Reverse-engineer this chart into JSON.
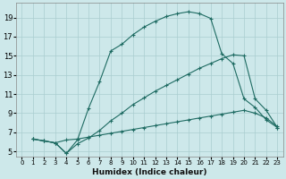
{
  "background_color": "#cde8ea",
  "grid_color": "#aacdd0",
  "line_color": "#1e6b62",
  "xlabel": "Humidex (Indice chaleur)",
  "xlim": [
    -0.5,
    23.5
  ],
  "ylim": [
    4.5,
    20.5
  ],
  "xticks": [
    0,
    1,
    2,
    3,
    4,
    5,
    6,
    7,
    8,
    9,
    10,
    11,
    12,
    13,
    14,
    15,
    16,
    17,
    18,
    19,
    20,
    21,
    22,
    23
  ],
  "yticks": [
    5,
    7,
    9,
    11,
    13,
    15,
    17,
    19
  ],
  "curve_top_x": [
    1,
    2,
    3,
    4,
    5,
    6,
    7,
    8,
    9,
    10,
    11,
    12,
    13,
    14,
    15,
    16,
    17,
    18,
    19,
    20,
    21,
    22,
    23
  ],
  "curve_top_y": [
    6.3,
    6.1,
    5.9,
    4.8,
    6.2,
    9.5,
    12.3,
    15.5,
    16.2,
    17.2,
    18.0,
    18.6,
    19.1,
    19.4,
    19.6,
    19.4,
    18.9,
    15.2,
    14.2,
    10.5,
    9.6,
    8.3,
    7.5
  ],
  "curve_mid_x": [
    1,
    2,
    3,
    4,
    5,
    6,
    7,
    8,
    9,
    10,
    11,
    12,
    13,
    14,
    15,
    16,
    17,
    18,
    19,
    20,
    21,
    22,
    23
  ],
  "curve_mid_y": [
    6.3,
    6.1,
    5.9,
    4.8,
    5.8,
    6.4,
    7.2,
    8.2,
    9.0,
    9.9,
    10.6,
    11.3,
    11.9,
    12.5,
    13.1,
    13.7,
    14.2,
    14.7,
    15.1,
    15.0,
    10.5,
    9.3,
    7.5
  ],
  "curve_bot_x": [
    1,
    2,
    3,
    4,
    5,
    6,
    7,
    8,
    9,
    10,
    11,
    12,
    13,
    14,
    15,
    16,
    17,
    18,
    19,
    20,
    21,
    22,
    23
  ],
  "curve_bot_y": [
    6.3,
    6.1,
    5.9,
    6.2,
    6.3,
    6.5,
    6.7,
    6.9,
    7.1,
    7.3,
    7.5,
    7.7,
    7.9,
    8.1,
    8.3,
    8.5,
    8.7,
    8.9,
    9.1,
    9.3,
    9.0,
    8.5,
    7.6
  ]
}
